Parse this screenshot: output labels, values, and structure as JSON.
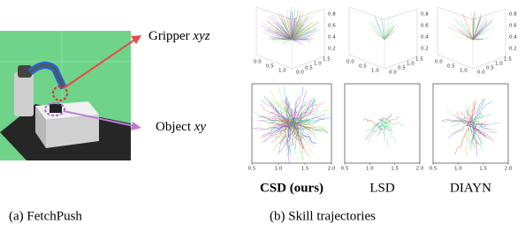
{
  "panel_a": {
    "gripper_label": "Gripper",
    "gripper_var": "xyz",
    "object_label": "Object",
    "object_var": "xy",
    "caption": "(a) FetchPush"
  },
  "panel_b": {
    "caption": "(b) Skill trajectories",
    "methods": [
      "CSD (ours)",
      "LSD",
      "DIAYN"
    ],
    "plot3d_z_ticks": [
      "0.2",
      "0.4",
      "0.6",
      "0.8"
    ],
    "plot3d_x_ticks": [
      "0.0",
      "0.5",
      "1.0"
    ],
    "plot3d_y_ticks": [
      "0.0",
      "0.5",
      "1.0",
      "1.5"
    ],
    "plot2d_x_ticks": [
      "0.5",
      "1.0",
      "1.5",
      "2.0"
    ]
  }
}
